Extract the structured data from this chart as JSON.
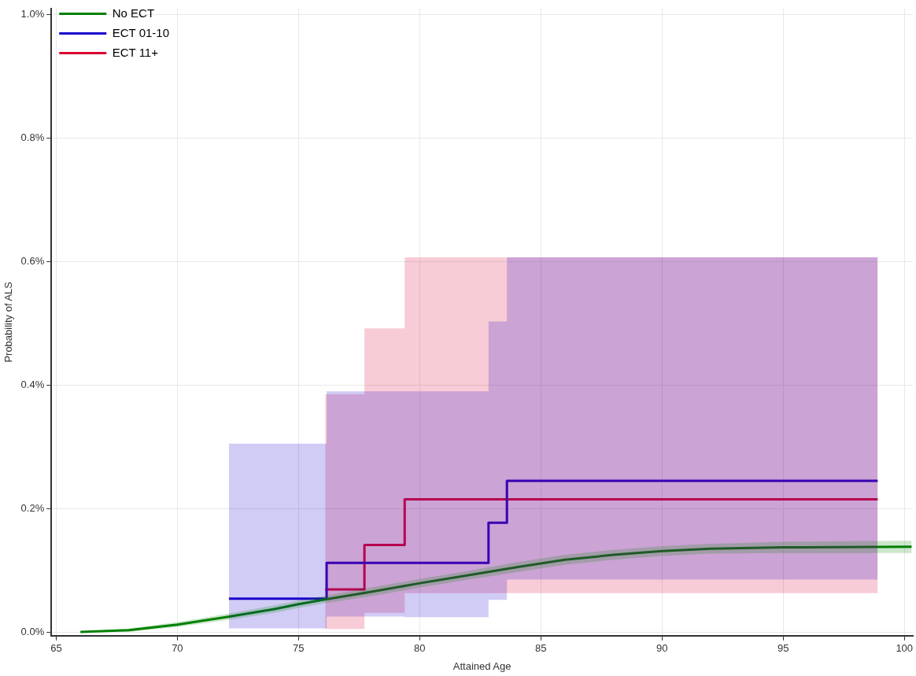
{
  "chart_data": {
    "type": "step",
    "xlabel": "Attained Age",
    "ylabel": "Probability of ALS",
    "xlim": [
      64.8,
      100.35
    ],
    "ylim": [
      -0.006,
      1.01
    ],
    "xticks": [
      65,
      70,
      75,
      80,
      85,
      90,
      95,
      100
    ],
    "yticks": [
      {
        "value": 0,
        "label": "0.0%"
      },
      {
        "value": 0.2,
        "label": "0.2%"
      },
      {
        "value": 0.4,
        "label": "0.4%"
      },
      {
        "value": 0.6,
        "label": "0.6%"
      },
      {
        "value": 0.8,
        "label": "0.8%"
      },
      {
        "value": 1.0,
        "label": "1.0%"
      }
    ],
    "grid": true,
    "legend": "top left",
    "marker": "none",
    "line_style": "solid",
    "series": [
      {
        "name": "No ECT",
        "color": "#008000",
        "type": "line",
        "x": [
          66,
          68,
          70,
          72,
          74,
          75,
          76,
          78,
          80,
          82,
          84,
          86,
          88,
          90,
          92,
          95,
          100.3
        ],
        "values": [
          0.0,
          0.003,
          0.012,
          0.024,
          0.037,
          0.045,
          0.052,
          0.065,
          0.079,
          0.092,
          0.105,
          0.117,
          0.125,
          0.131,
          0.135,
          0.137,
          0.138
        ],
        "lower": [
          0.0,
          0.0,
          0.008,
          0.019,
          0.031,
          0.039,
          0.046,
          0.058,
          0.072,
          0.085,
          0.097,
          0.109,
          0.117,
          0.123,
          0.127,
          0.128,
          0.128
        ],
        "upper": [
          0.0,
          0.006,
          0.016,
          0.029,
          0.043,
          0.051,
          0.058,
          0.072,
          0.086,
          0.099,
          0.113,
          0.125,
          0.133,
          0.139,
          0.143,
          0.146,
          0.148
        ]
      },
      {
        "name": "ECT 01-10",
        "color": "#1a00cc",
        "x": [
          72.13,
          76.16,
          79.38,
          82.84,
          83.6,
          98.9
        ],
        "values": [
          0.054,
          0.112,
          0.112,
          0.177,
          0.245,
          0.245
        ],
        "lower": [
          0.006,
          0.025,
          0.024,
          0.052,
          0.085,
          0.085
        ],
        "upper": [
          0.305,
          0.39,
          0.39,
          0.503,
          0.607,
          0.607
        ]
      },
      {
        "name": "ECT 11+",
        "color": "#dc0030",
        "x": [
          76.1,
          77.72,
          79.38,
          98.9
        ],
        "values": [
          0.069,
          0.141,
          0.215,
          0.215
        ],
        "lower": [
          0.005,
          0.031,
          0.063,
          0.063
        ],
        "upper": [
          0.385,
          0.492,
          0.607,
          0.607
        ]
      }
    ]
  }
}
